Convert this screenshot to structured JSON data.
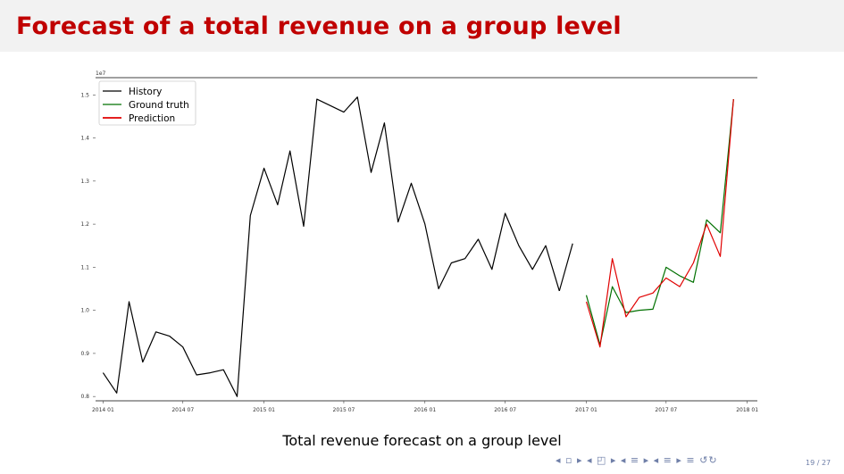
{
  "slide": {
    "title": "Forecast of a total revenue on a group level",
    "caption": "Total revenue forecast on a group level",
    "nav_icons": "◂ ▫ ▸  ◂ ◰ ▸  ◂ ≡ ▸  ◂ ≡ ▸   ≡   ↺↻",
    "page_number": "19 / 27"
  },
  "chart_data": {
    "type": "line",
    "title": "",
    "xlabel": "",
    "ylabel": "",
    "scale_label": "1e7",
    "ylim": [
      0.79,
      1.54
    ],
    "xlim": [
      "2013-12-15",
      "2018-01-24"
    ],
    "yticks": [
      0.8,
      0.9,
      1.0,
      1.1,
      1.2,
      1.3,
      1.4,
      1.5
    ],
    "ytick_labels": [
      "0.8",
      "0.9",
      "1.0",
      "1.1",
      "1.2",
      "1.3",
      "1.4",
      "1.5"
    ],
    "xticks": [
      "2014-01",
      "2014-07",
      "2015-01",
      "2015-07",
      "2016-01",
      "2016-07",
      "2017-01",
      "2017-07",
      "2018-01"
    ],
    "xtick_labels": [
      "2014 01",
      "2014 07",
      "2015 01",
      "2015 07",
      "2016 01",
      "2016 07",
      "2017 01",
      "2017 07",
      "2018 01"
    ],
    "grid": false,
    "legend": "top-left",
    "series": [
      {
        "name": "History",
        "color": "#000000",
        "x": [
          "2014-01",
          "2014-02",
          "2014-03",
          "2014-04",
          "2014-05",
          "2014-06",
          "2014-07",
          "2014-08",
          "2014-09",
          "2014-10",
          "2014-11",
          "2014-12",
          "2015-01",
          "2015-02",
          "2015-03",
          "2015-04",
          "2015-05",
          "2015-06",
          "2015-07",
          "2015-08",
          "2015-09",
          "2015-10",
          "2015-11",
          "2015-12",
          "2016-01",
          "2016-02",
          "2016-03",
          "2016-04",
          "2016-05",
          "2016-06",
          "2016-07",
          "2016-08",
          "2016-09",
          "2016-10",
          "2016-11"
        ],
        "y": [
          0.855,
          0.808,
          1.02,
          0.88,
          0.95,
          0.94,
          0.915,
          0.85,
          0.855,
          0.862,
          0.8,
          1.22,
          1.33,
          1.245,
          1.37,
          1.195,
          1.49,
          1.475,
          1.46,
          1.495,
          1.32,
          1.435,
          1.205,
          1.295,
          1.2,
          1.05,
          1.11,
          1.12,
          1.165,
          1.095,
          1.225,
          1.15,
          1.095,
          1.15,
          1.045
        ]
      },
      {
        "name": "History (tail)",
        "color": "#000000",
        "x": [
          "2016-11",
          "2016-12"
        ],
        "y": [
          1.045,
          1.155
        ]
      },
      {
        "name": "Ground truth",
        "color": "#007000",
        "x": [
          "2017-01",
          "2017-02",
          "2017-03",
          "2017-04",
          "2017-05",
          "2017-06",
          "2017-07",
          "2017-08",
          "2017-09",
          "2017-10",
          "2017-11",
          "2017-12"
        ],
        "y": [
          1.035,
          0.92,
          1.055,
          0.995,
          1.0,
          1.0025,
          1.1,
          1.08,
          1.065,
          1.21,
          1.18,
          1.49
        ]
      },
      {
        "name": "Prediction",
        "color": "#e00000",
        "x": [
          "2017-01",
          "2017-02",
          "2017-03",
          "2017-04",
          "2017-05",
          "2017-06",
          "2017-07",
          "2017-08",
          "2017-09",
          "2017-10",
          "2017-11",
          "2017-12"
        ],
        "y": [
          1.02,
          0.915,
          1.12,
          0.985,
          1.03,
          1.04,
          1.075,
          1.055,
          1.11,
          1.2,
          1.125,
          1.49
        ]
      }
    ],
    "legend_entries": [
      {
        "label": "History",
        "color": "#000000"
      },
      {
        "label": "Ground truth",
        "color": "#007000"
      },
      {
        "label": "Prediction",
        "color": "#e00000"
      }
    ]
  }
}
